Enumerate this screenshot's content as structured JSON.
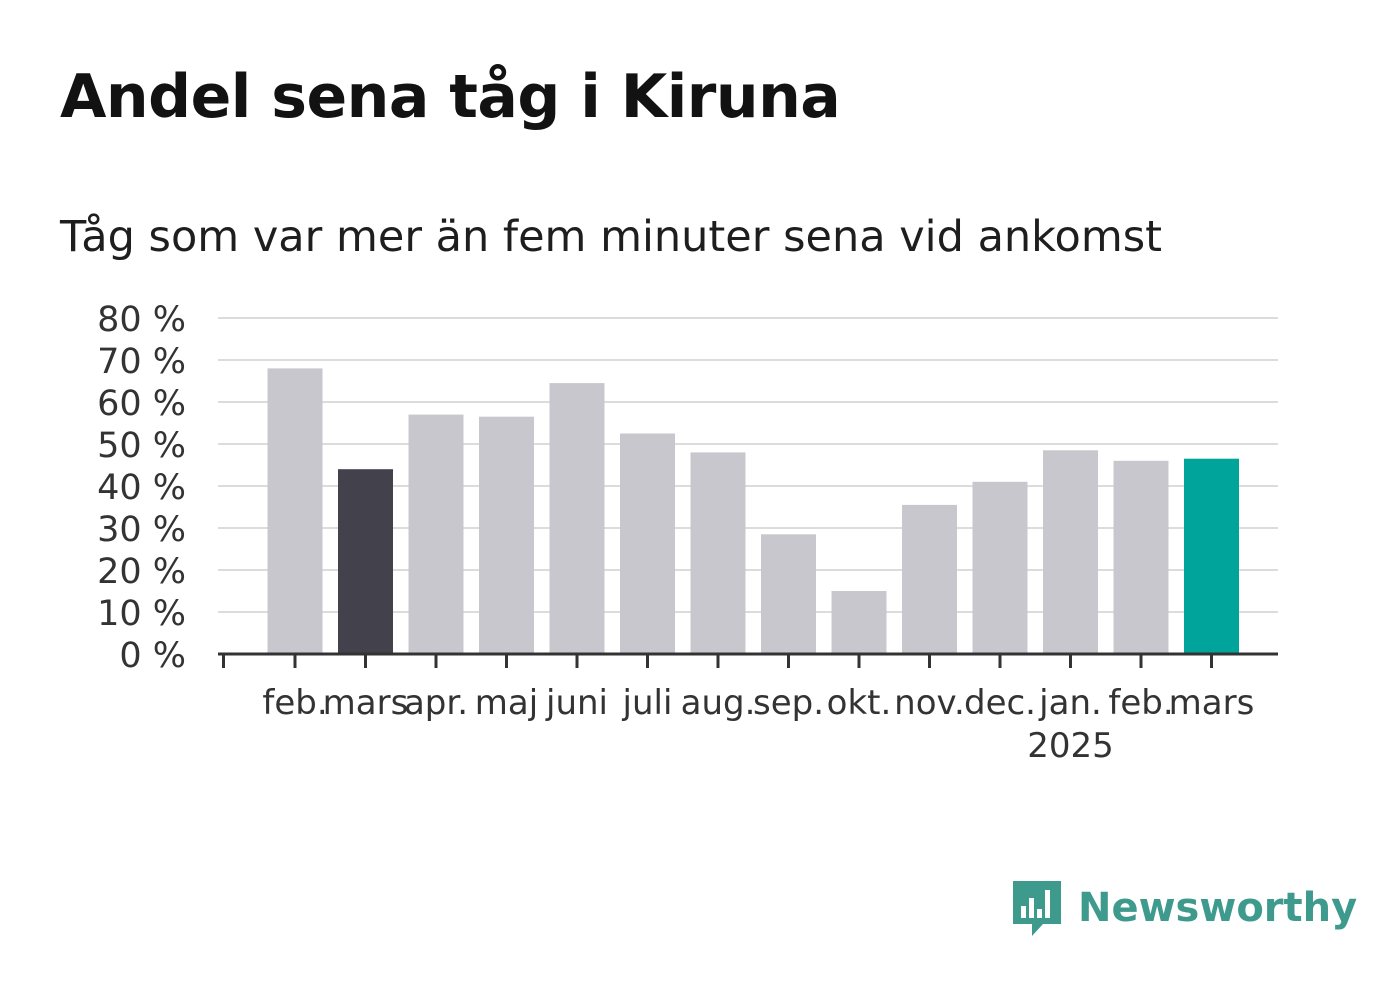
{
  "title": "Andel sena tåg i Kiruna",
  "subtitle": "Tåg som var mer än fem minuter sena vid ankomst",
  "logo": {
    "text": "Newsworthy",
    "icon": "newsworthy-logo-icon",
    "color": "#3f9a8e"
  },
  "colors": {
    "default": "#c8c7ce",
    "highlight_previous": "#42414c",
    "highlight_current": "#00a49a",
    "grid": "#dcdcdc",
    "axis": "#333333"
  },
  "chart_data": {
    "type": "bar",
    "title": "Andel sena tåg i Kiruna",
    "subtitle": "Tåg som var mer än fem minuter sena vid ankomst",
    "xlabel": "",
    "ylabel": "",
    "ylim": [
      0,
      80
    ],
    "yticks": [
      0,
      10,
      20,
      30,
      40,
      50,
      60,
      70,
      80
    ],
    "ytick_labels": [
      "0 %",
      "10 %",
      "20 %",
      "30 %",
      "40 %",
      "50 %",
      "60 %",
      "70 %",
      "80 %"
    ],
    "categories": [
      "feb.",
      "mars",
      "apr.",
      "maj",
      "juni",
      "juli",
      "aug.",
      "sep.",
      "okt.",
      "nov.",
      "dec.",
      "jan.",
      "feb.",
      "mars"
    ],
    "year_labels": [
      {
        "index": 11,
        "text": "2025"
      }
    ],
    "values": [
      68,
      44,
      57,
      56.5,
      64.5,
      52.5,
      48,
      28.5,
      15,
      35.5,
      41,
      48.5,
      46,
      46.5
    ],
    "bar_colors": [
      "default",
      "highlight_previous",
      "default",
      "default",
      "default",
      "default",
      "default",
      "default",
      "default",
      "default",
      "default",
      "default",
      "default",
      "highlight_current"
    ],
    "grid": true,
    "legend": "none"
  }
}
